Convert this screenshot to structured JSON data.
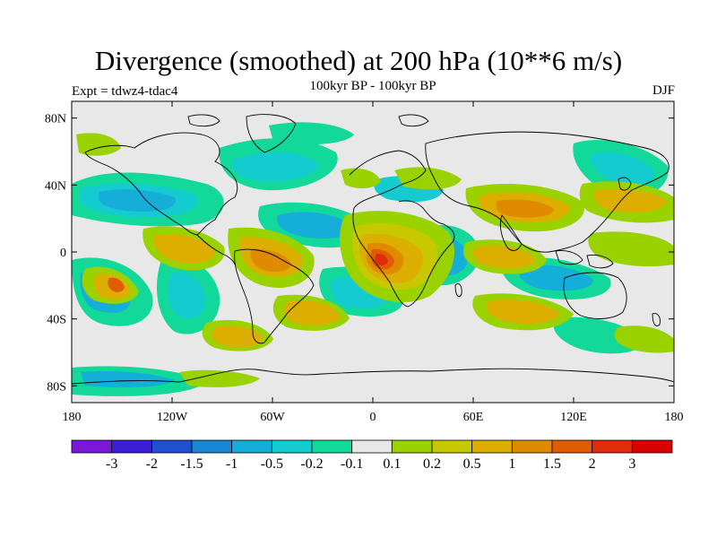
{
  "title": "Divergence (smoothed) at 200 hPa (10**6 m/s)",
  "subtitle": "100kyr BP - 100kyr BP",
  "left_label": "Expt = tdwz4-tdac4",
  "right_label": "DJF",
  "lat_ticks": [
    "80N",
    "40N",
    "0",
    "40S",
    "80S"
  ],
  "lat_values": [
    80,
    40,
    0,
    -40,
    -80
  ],
  "lon_ticks": [
    "180",
    "120W",
    "60W",
    "0",
    "60E",
    "120E",
    "180"
  ],
  "lon_values": [
    -180,
    -120,
    -60,
    0,
    60,
    120,
    180
  ],
  "colorbar": {
    "labels": [
      "-3",
      "-2",
      "-1.5",
      "-1",
      "-0.5",
      "-0.2",
      "-0.1",
      "0.1",
      "0.2",
      "0.5",
      "1",
      "1.5",
      "2",
      "3"
    ],
    "colors": [
      "#7a18d8",
      "#3a1fd6",
      "#1f50d0",
      "#1a86d6",
      "#14aed8",
      "#14ccd0",
      "#12d89a",
      "#e8e8e8",
      "#9ad200",
      "#c8c800",
      "#dcae00",
      "#e08a00",
      "#e05c00",
      "#de2c0c",
      "#d80000"
    ]
  },
  "map_colors": {
    "background": "#e8e8e8",
    "coast": "#000000"
  }
}
